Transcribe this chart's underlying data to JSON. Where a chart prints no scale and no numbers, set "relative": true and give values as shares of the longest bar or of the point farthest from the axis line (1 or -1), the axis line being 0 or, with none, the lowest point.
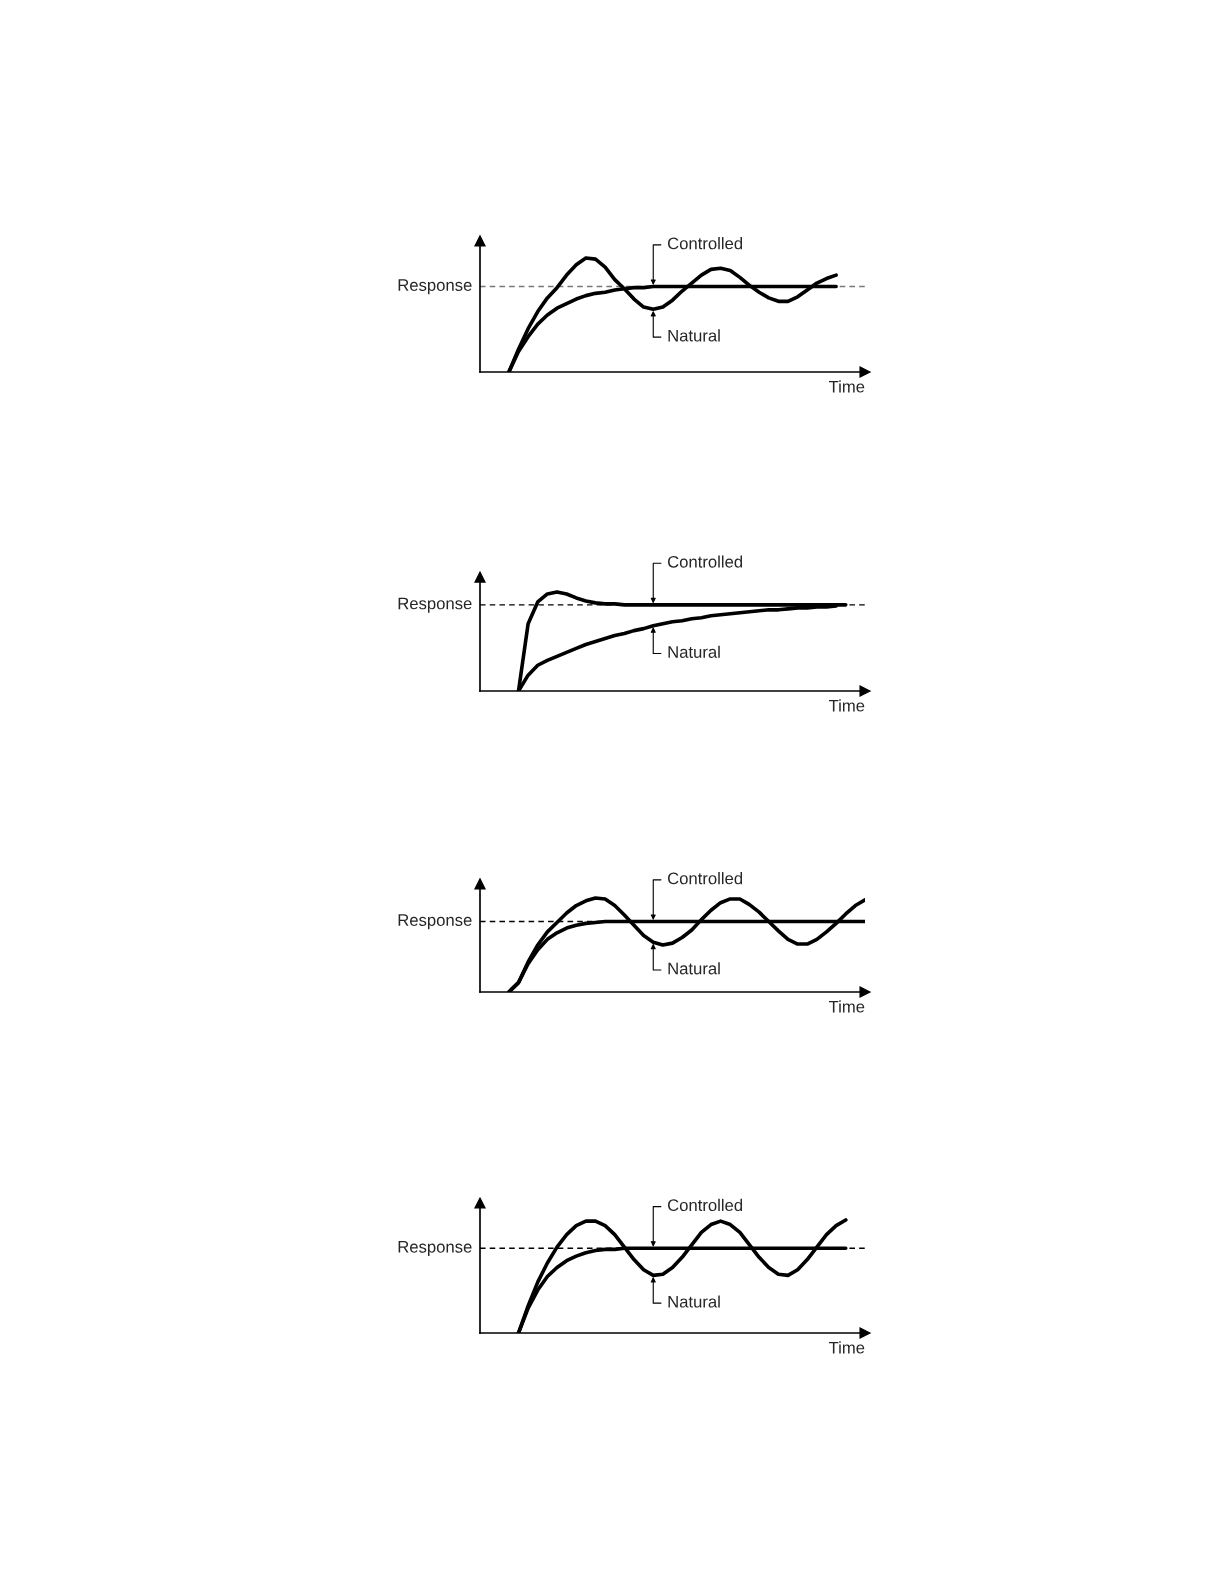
{
  "chart_data": [
    {
      "type": "line",
      "relative": true,
      "xlabel": "Time",
      "tick_labels": false,
      "categories": [
        null,
        null,
        null,
        null,
        null,
        null,
        null,
        null,
        null,
        null,
        null,
        null,
        null,
        null,
        null,
        null,
        null,
        null,
        null,
        null,
        null,
        null,
        null,
        null,
        null,
        null,
        null,
        null,
        null,
        null,
        null,
        null,
        null,
        null,
        null,
        null,
        null,
        null,
        null,
        null,
        null
      ],
      "series": [
        {
          "name": "Controlled",
          "color": "#000000",
          "values": [
            null,
            null,
            null,
            0,
            0.18,
            0.31,
            0.42,
            0.5,
            0.56,
            0.6,
            0.64,
            0.67,
            0.69,
            0.7,
            0.72,
            0.73,
            0.74,
            0.74,
            0.75,
            0.75,
            0.75,
            0.75,
            0.75,
            0.75,
            0.75,
            0.75,
            0.75,
            0.75,
            0.75,
            0.75,
            0.75,
            0.75,
            0.75,
            0.75,
            0.75,
            0.75,
            0.75,
            0.75,
            null,
            null,
            null
          ]
        },
        {
          "name": "Natural",
          "color": "#000000",
          "values": [
            null,
            null,
            null,
            0,
            0.2,
            0.38,
            0.53,
            0.65,
            0.74,
            0.85,
            0.94,
            1.0,
            0.99,
            0.92,
            0.81,
            0.73,
            0.64,
            0.57,
            0.55,
            0.57,
            0.63,
            0.71,
            0.78,
            0.85,
            0.9,
            0.91,
            0.89,
            0.83,
            0.76,
            0.7,
            0.65,
            0.62,
            0.62,
            0.66,
            0.72,
            0.78,
            0.82,
            0.85,
            null,
            null,
            null
          ]
        }
      ],
      "ref_lines": [
        {
          "axis": "y",
          "value": 0.75,
          "label": "Response",
          "color": "#777777",
          "line_style": "dashed"
        }
      ]
    },
    {
      "type": "line",
      "relative": true,
      "xlabel": "Time",
      "tick_labels": false,
      "categories": [
        null,
        null,
        null,
        null,
        null,
        null,
        null,
        null,
        null,
        null,
        null,
        null,
        null,
        null,
        null,
        null,
        null,
        null,
        null,
        null,
        null,
        null,
        null,
        null,
        null,
        null,
        null,
        null,
        null,
        null,
        null,
        null,
        null,
        null,
        null,
        null,
        null,
        null,
        null,
        null,
        null
      ],
      "series": [
        {
          "name": "Controlled",
          "color": "#000000",
          "values": [
            null,
            null,
            null,
            null,
            0,
            0.68,
            0.9,
            0.98,
            1.0,
            0.98,
            0.94,
            0.91,
            0.89,
            0.88,
            0.88,
            0.87,
            0.87,
            0.87,
            0.87,
            0.87,
            0.87,
            0.87,
            0.87,
            0.87,
            0.87,
            0.87,
            0.87,
            0.87,
            0.87,
            0.87,
            0.87,
            0.87,
            0.87,
            0.87,
            0.87,
            0.87,
            0.87,
            0.87,
            0.87,
            null,
            null
          ]
        },
        {
          "name": "Natural",
          "color": "#000000",
          "values": [
            null,
            null,
            null,
            null,
            0,
            0.16,
            0.26,
            0.31,
            0.35,
            0.39,
            0.43,
            0.47,
            0.5,
            0.53,
            0.56,
            0.58,
            0.61,
            0.63,
            0.66,
            0.68,
            0.7,
            0.71,
            0.73,
            0.74,
            0.76,
            0.77,
            0.78,
            0.79,
            0.8,
            0.81,
            0.82,
            0.82,
            0.83,
            0.84,
            0.84,
            0.85,
            0.85,
            0.86,
            null,
            null,
            null
          ]
        }
      ],
      "ref_lines": [
        {
          "axis": "y",
          "value": 0.87,
          "label": "Response",
          "color": "#000000",
          "line_style": "dashed"
        }
      ]
    },
    {
      "type": "line",
      "relative": true,
      "xlabel": "Time",
      "tick_labels": false,
      "categories": [
        null,
        null,
        null,
        null,
        null,
        null,
        null,
        null,
        null,
        null,
        null,
        null,
        null,
        null,
        null,
        null,
        null,
        null,
        null,
        null,
        null,
        null,
        null,
        null,
        null,
        null,
        null,
        null,
        null,
        null,
        null,
        null,
        null,
        null,
        null,
        null,
        null,
        null,
        null,
        null,
        null
      ],
      "series": [
        {
          "name": "Controlled",
          "color": "#000000",
          "values": [
            null,
            null,
            null,
            0,
            0.1,
            0.3,
            0.45,
            0.56,
            0.63,
            0.68,
            0.71,
            0.73,
            0.74,
            0.75,
            0.75,
            0.75,
            0.75,
            0.75,
            0.75,
            0.75,
            0.75,
            0.75,
            0.75,
            0.75,
            0.75,
            0.75,
            0.75,
            0.75,
            0.75,
            0.75,
            0.75,
            0.75,
            0.75,
            0.75,
            0.75,
            0.75,
            0.75,
            0.75,
            0.75,
            0.75,
            0.75
          ]
        },
        {
          "name": "Natural",
          "color": "#000000",
          "values": [
            null,
            null,
            null,
            0,
            0.1,
            0.32,
            0.5,
            0.64,
            0.74,
            0.84,
            0.92,
            0.97,
            1.0,
            0.99,
            0.92,
            0.82,
            0.71,
            0.6,
            0.53,
            0.5,
            0.52,
            0.58,
            0.66,
            0.77,
            0.87,
            0.95,
            0.99,
            0.99,
            0.93,
            0.85,
            0.75,
            0.65,
            0.56,
            0.51,
            0.51,
            0.56,
            0.64,
            0.73,
            0.83,
            0.92,
            0.98
          ]
        }
      ],
      "ref_lines": [
        {
          "axis": "y",
          "value": 0.75,
          "label": "Response",
          "color": "#000000",
          "line_style": "dashed"
        }
      ]
    },
    {
      "type": "line",
      "relative": true,
      "xlabel": "Time",
      "tick_labels": false,
      "categories": [
        null,
        null,
        null,
        null,
        null,
        null,
        null,
        null,
        null,
        null,
        null,
        null,
        null,
        null,
        null,
        null,
        null,
        null,
        null,
        null,
        null,
        null,
        null,
        null,
        null,
        null,
        null,
        null,
        null,
        null,
        null,
        null,
        null,
        null,
        null,
        null,
        null,
        null,
        null,
        null,
        null
      ],
      "series": [
        {
          "name": "Controlled",
          "color": "#000000",
          "values": [
            null,
            null,
            null,
            null,
            0,
            0.22,
            0.38,
            0.5,
            0.58,
            0.64,
            0.68,
            0.71,
            0.73,
            0.74,
            0.74,
            0.75,
            0.75,
            0.75,
            0.75,
            0.75,
            0.75,
            0.75,
            0.75,
            0.75,
            0.75,
            0.75,
            0.75,
            0.75,
            0.75,
            0.75,
            0.75,
            0.75,
            0.75,
            0.75,
            0.75,
            0.75,
            0.75,
            0.75,
            0.75,
            null,
            null
          ]
        },
        {
          "name": "Natural",
          "color": "#000000",
          "values": [
            null,
            null,
            null,
            null,
            0,
            0.24,
            0.45,
            0.62,
            0.76,
            0.87,
            0.95,
            0.99,
            0.99,
            0.95,
            0.87,
            0.76,
            0.65,
            0.56,
            0.51,
            0.52,
            0.58,
            0.67,
            0.78,
            0.89,
            0.96,
            0.99,
            0.96,
            0.89,
            0.78,
            0.67,
            0.58,
            0.52,
            0.51,
            0.56,
            0.65,
            0.76,
            0.87,
            0.95,
            1.0,
            null,
            null
          ]
        }
      ],
      "ref_lines": [
        {
          "axis": "y",
          "value": 0.75,
          "label": "Response",
          "color": "#000000",
          "line_style": "dashed"
        }
      ]
    }
  ]
}
